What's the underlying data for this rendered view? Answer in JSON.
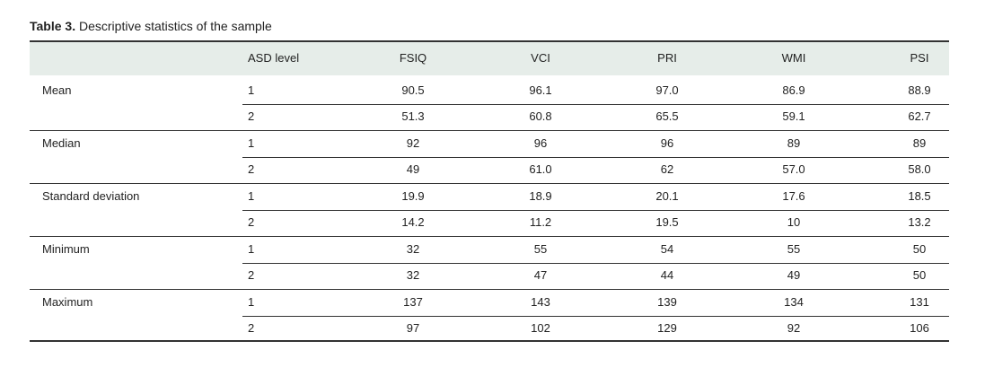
{
  "caption": {
    "label": "Table 3.",
    "text": "Descriptive statistics of the sample"
  },
  "table": {
    "header": [
      "ASD level",
      "FSIQ",
      "VCI",
      "PRI",
      "WMI",
      "PSI"
    ],
    "groups": [
      {
        "label": "Mean",
        "rows": [
          [
            "1",
            "90.5",
            "96.1",
            "97.0",
            "86.9",
            "88.9"
          ],
          [
            "2",
            "51.3",
            "60.8",
            "65.5",
            "59.1",
            "62.7"
          ]
        ]
      },
      {
        "label": "Median",
        "rows": [
          [
            "1",
            "92",
            "96",
            "96",
            "89",
            "89"
          ],
          [
            "2",
            "49",
            "61.0",
            "62",
            "57.0",
            "58.0"
          ]
        ]
      },
      {
        "label": "Standard deviation",
        "rows": [
          [
            "1",
            "19.9",
            "18.9",
            "20.1",
            "17.6",
            "18.5"
          ],
          [
            "2",
            "14.2",
            "11.2",
            "19.5",
            "10",
            "13.2"
          ]
        ]
      },
      {
        "label": "Minimum",
        "rows": [
          [
            "1",
            "32",
            "55",
            "54",
            "55",
            "50"
          ],
          [
            "2",
            "32",
            "47",
            "44",
            "49",
            "50"
          ]
        ]
      },
      {
        "label": "Maximum",
        "rows": [
          [
            "1",
            "137",
            "143",
            "139",
            "134",
            "131"
          ],
          [
            "2",
            "97",
            "102",
            "129",
            "92",
            "106"
          ]
        ]
      }
    ]
  }
}
